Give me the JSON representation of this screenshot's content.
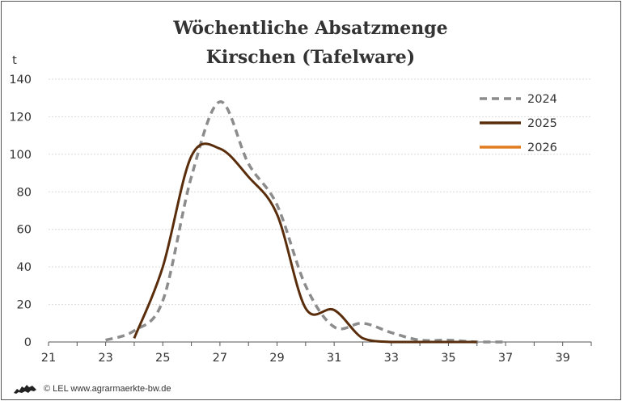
{
  "chart_data": {
    "type": "line",
    "title_lines": [
      "Wöchentliche Absatzmenge",
      "Kirschen (Tafelware)"
    ],
    "ylabel": "t",
    "xlim": [
      21,
      40
    ],
    "ylim": [
      0,
      140
    ],
    "x_ticks": [
      21,
      23,
      25,
      27,
      29,
      31,
      33,
      35,
      37,
      39
    ],
    "y_ticks": [
      0,
      20,
      40,
      60,
      80,
      100,
      120,
      140
    ],
    "grid": true,
    "legend_position": "top-right",
    "series": [
      {
        "name": "2024",
        "color": "#8c8c8c",
        "style": "dashed",
        "x": [
          23,
          24,
          25,
          26,
          27,
          28,
          29,
          30,
          31,
          32,
          33,
          34,
          35,
          36,
          37
        ],
        "y": [
          1,
          6,
          22,
          88,
          128,
          95,
          73,
          30,
          8,
          10,
          5,
          1,
          1,
          0,
          0
        ]
      },
      {
        "name": "2025",
        "color": "#5a2e0c",
        "style": "solid",
        "x": [
          24,
          25,
          26,
          27,
          28,
          29,
          30,
          31,
          32,
          33,
          34,
          35,
          36
        ],
        "y": [
          2,
          40,
          99,
          103,
          88,
          68,
          18,
          17,
          2,
          0,
          0,
          0,
          0
        ]
      },
      {
        "name": "2026",
        "color": "#e07b1f",
        "style": "solid",
        "x": [],
        "y": []
      }
    ]
  },
  "footer": {
    "text": "© LEL www.agrarmaerkte-bw.de"
  }
}
